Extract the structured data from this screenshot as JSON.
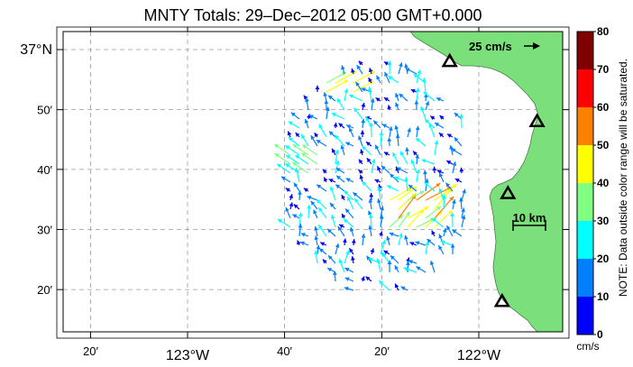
{
  "title": "MNTY Totals: 29–Dec–2012 05:00 GMT+0.000",
  "lat_labels": [
    {
      "text": "37°N",
      "lat": 37.0,
      "major": true
    },
    {
      "text": "50′",
      "lat": 36.833,
      "major": false
    },
    {
      "text": "40′",
      "lat": 36.667,
      "major": false
    },
    {
      "text": "30′",
      "lat": 36.5,
      "major": false
    },
    {
      "text": "20′",
      "lat": 36.333,
      "major": false
    }
  ],
  "lon_labels": [
    {
      "text": "20′",
      "lon": -123.333,
      "major": false
    },
    {
      "text": "123°W",
      "lon": -123.0,
      "major": true
    },
    {
      "text": "40′",
      "lon": -122.667,
      "major": false
    },
    {
      "text": "20′",
      "lon": -122.333,
      "major": false
    },
    {
      "text": "122°W",
      "lon": -122.0,
      "major": true
    }
  ],
  "scale": {
    "velocity_label": "25 cm/s",
    "distance_label": "10 km"
  },
  "colorbar": {
    "ticks": [
      "80",
      "70",
      "60",
      "50",
      "40",
      "30",
      "20",
      "10",
      "0"
    ],
    "unit": "cm/s",
    "note": "NOTE: Data outside color range will be saturated.",
    "colors": [
      "#7f0000",
      "#ff0000",
      "#ff8000",
      "#ffff00",
      "#80ff80",
      "#00ffff",
      "#0080ff",
      "#0000ff"
    ]
  },
  "colors": {
    "land": "#7be07b",
    "background": "#ffffff",
    "grid": "#999999"
  },
  "stations": [
    {
      "lon": -122.1,
      "lat": 36.967
    },
    {
      "lon": -121.8,
      "lat": 36.8
    },
    {
      "lon": -121.9,
      "lat": 36.6
    },
    {
      "lon": -121.92,
      "lat": 36.3
    }
  ]
}
